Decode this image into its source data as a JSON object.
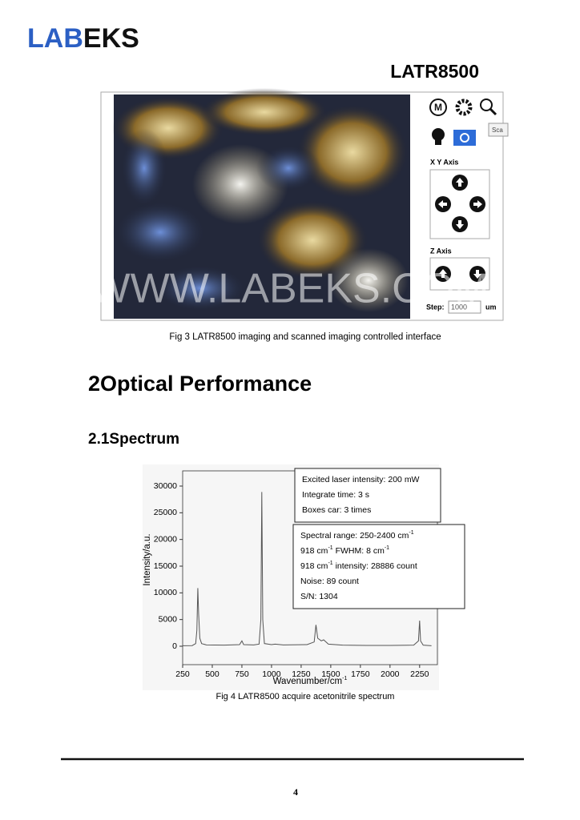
{
  "logo": {
    "part1": "LAB",
    "part2": "EKS"
  },
  "product": "LATR8500",
  "interface": {
    "xy_label": "X Y Axis",
    "z_label": "Z Axis",
    "step_label": "Step:",
    "step_value": "1000",
    "step_unit": "um",
    "tooltip": "Sca",
    "watermark": "WWW.LABEKS.COM",
    "mode_icon": "M"
  },
  "fig3_caption": "Fig 3 LATR8500 imaging and scanned imaging controlled interface",
  "section_heading": "2Optical Performance",
  "subsection_heading": "2.1Spectrum",
  "chart_data": {
    "type": "line",
    "x_label": [
      "Wavenumber/cm",
      "-1"
    ],
    "y_label": "Intensity/a.u.",
    "x": [
      250,
      330,
      360,
      370,
      378,
      385,
      395,
      410,
      450,
      600,
      730,
      750,
      765,
      850,
      895,
      910,
      918,
      926,
      940,
      1000,
      1030,
      1100,
      1300,
      1360,
      1375,
      1390,
      1420,
      1440,
      1480,
      1600,
      1800,
      2000,
      2200,
      2240,
      2250,
      2258,
      2280,
      2350
    ],
    "values": [
      100,
      120,
      500,
      3000,
      10900,
      6000,
      1500,
      500,
      250,
      200,
      300,
      1000,
      300,
      250,
      400,
      5000,
      28886,
      5000,
      500,
      300,
      400,
      250,
      300,
      800,
      4000,
      1500,
      1000,
      1200,
      400,
      200,
      150,
      150,
      200,
      1000,
      4800,
      1000,
      200,
      100
    ],
    "color": "#555555",
    "xlim": [
      250,
      2400
    ],
    "ylim": [
      -3450,
      32850
    ],
    "xticks": [
      250,
      500,
      750,
      1000,
      1250,
      1500,
      1750,
      2000,
      2250
    ],
    "yticks": [
      0,
      5000,
      10000,
      15000,
      20000,
      25000,
      30000
    ],
    "annotations": [
      [
        [
          "Excited laser intensity: 200 mW"
        ],
        [
          "Integrate time: 3 s"
        ],
        [
          "Boxes car: 3 times"
        ]
      ],
      [
        [
          "Spectral range: 250-2400 cm",
          "-1"
        ],
        [
          "918 cm",
          "-1",
          " FWHM: 8 cm",
          "-1"
        ],
        [
          "918 cm",
          "-1",
          " intensity: 28886 count"
        ],
        [
          "Noise: 89 count"
        ],
        [
          "S/N: 1304"
        ]
      ]
    ]
  },
  "fig4_caption": "Fig 4 LATR8500 acquire acetonitrile spectrum",
  "page_number": "4"
}
